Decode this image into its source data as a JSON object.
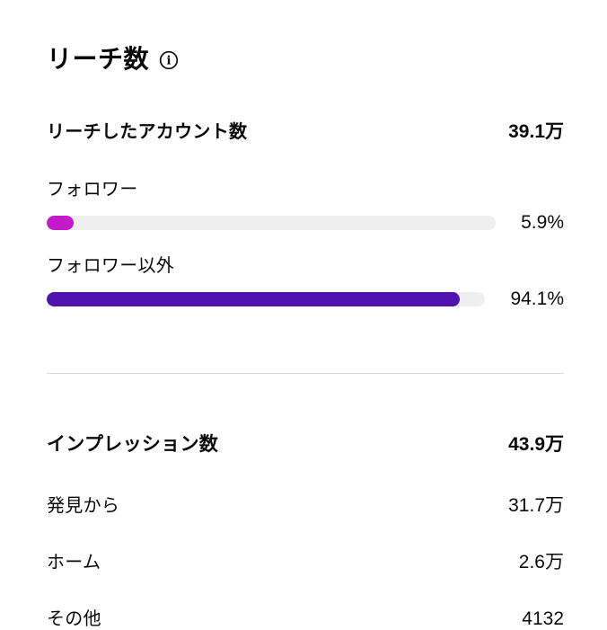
{
  "page": {
    "background": "#ffffff",
    "text_color": "#0a0a0a",
    "divider_color": "#dbdbdb"
  },
  "reach_section": {
    "title": "リーチ数",
    "info_icon": "info-circle-icon",
    "summary": {
      "label": "リーチしたアカウント数",
      "value": "39.1万"
    },
    "track_color": "#efefef",
    "bars": [
      {
        "label": "フォロワー",
        "percent": 5.9,
        "percent_label": "5.9%",
        "color": "#c519ca"
      },
      {
        "label": "フォロワー以外",
        "percent": 94.1,
        "percent_label": "94.1%",
        "color": "#5012b0"
      }
    ]
  },
  "impressions_section": {
    "header": {
      "label": "インプレッション数",
      "value": "43.9万"
    },
    "rows": [
      {
        "label": "発見から",
        "value": "31.7万"
      },
      {
        "label": "ホーム",
        "value": "2.6万"
      },
      {
        "label": "その他",
        "value": "4132"
      }
    ]
  }
}
